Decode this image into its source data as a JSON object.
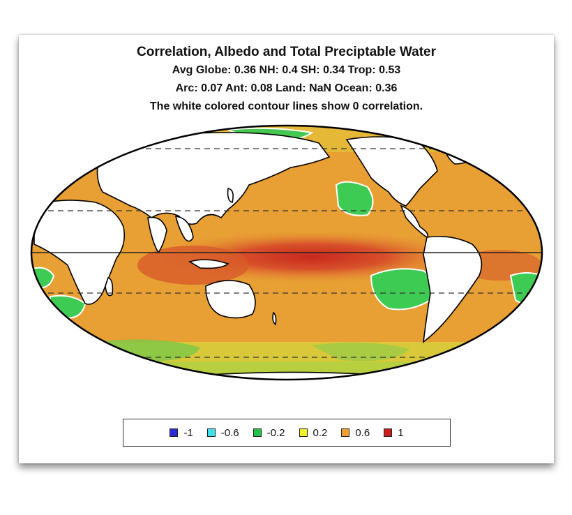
{
  "title": "Correlation, Albedo and Total Preciptable Water",
  "stats_line1": "Avg Globe: 0.36  NH: 0.4  SH: 0.34  Trop: 0.53",
  "stats_line2": "Arc: 0.07  Ant: 0.08  Land: NaN Ocean: 0.36",
  "note": "The white colored contour lines show 0 correlation.",
  "legend": [
    {
      "label": "-1",
      "color": "#2b2bd6"
    },
    {
      "label": "-0.6",
      "color": "#3fe0e8"
    },
    {
      "label": "-0.2",
      "color": "#22c24a"
    },
    {
      "label": "0.2",
      "color": "#f2ee2c"
    },
    {
      "label": "0.6",
      "color": "#f0a030"
    },
    {
      "label": "1",
      "color": "#c81e1e"
    }
  ],
  "colors": {
    "ocean_base": "#e8a034",
    "tropics": "#d8502a",
    "land": "#ffffff",
    "negative": "#3ecb53",
    "weak_positive": "#c8d838"
  }
}
